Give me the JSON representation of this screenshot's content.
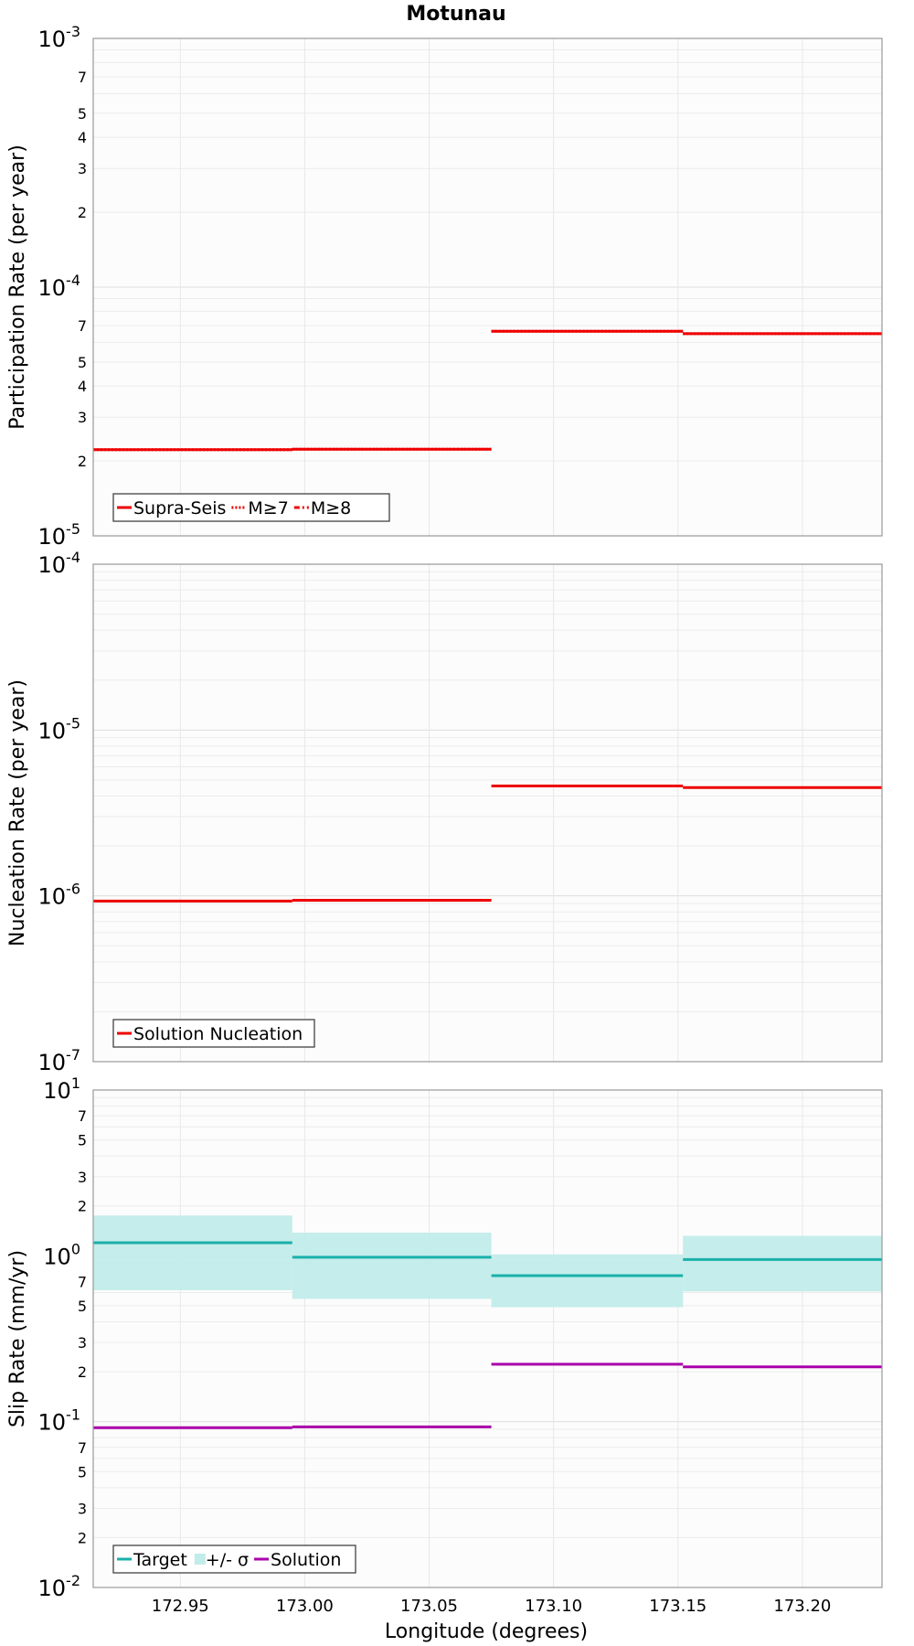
{
  "chart_data": [
    {
      "type": "line",
      "step": true,
      "title": "Motunau",
      "ylabel": "Participation Rate (per year)",
      "xlabel": "",
      "yscale": "log",
      "ylim": [
        1e-05,
        0.001
      ],
      "xlim": [
        172.915,
        173.232
      ],
      "grid": true,
      "legend_position": "bottom-left",
      "series": [
        {
          "name": "Supra-Seis",
          "color": "#ee0000",
          "dash": "solid",
          "segments": [
            {
              "x": [
                172.915,
                172.995
              ],
              "y": 2.22e-05
            },
            {
              "x": [
                172.995,
                173.075
              ],
              "y": 2.23e-05
            },
            {
              "x": [
                173.075,
                173.152
              ],
              "y": 6.65e-05
            },
            {
              "x": [
                173.152,
                173.232
              ],
              "y": 6.5e-05
            }
          ]
        },
        {
          "name": "M≥7",
          "color": "#ee0000",
          "dash": "dotted",
          "segments": [
            {
              "x": [
                172.915,
                172.995
              ],
              "y": 2.22e-05
            },
            {
              "x": [
                172.995,
                173.075
              ],
              "y": 2.23e-05
            },
            {
              "x": [
                173.075,
                173.152
              ],
              "y": 6.65e-05
            },
            {
              "x": [
                173.152,
                173.232
              ],
              "y": 6.5e-05
            }
          ]
        },
        {
          "name": "M≥8",
          "color": "#ee0000",
          "dash": "dashdot",
          "segments": []
        }
      ],
      "yticks": {
        "major": [
          {
            "value": 1e-05,
            "base": "10",
            "exp": "-5"
          },
          {
            "value": 0.0001,
            "base": "10",
            "exp": "-4"
          },
          {
            "value": 0.001,
            "base": "10",
            "exp": "-3"
          }
        ],
        "minor": [
          {
            "value": 2e-05,
            "label": "2"
          },
          {
            "value": 3e-05,
            "label": "3"
          },
          {
            "value": 4e-05,
            "label": "4"
          },
          {
            "value": 5e-05,
            "label": "5"
          },
          {
            "value": 7e-05,
            "label": "7"
          },
          {
            "value": 0.0002,
            "label": "2"
          },
          {
            "value": 0.0003,
            "label": "3"
          },
          {
            "value": 0.0004,
            "label": "4"
          },
          {
            "value": 0.0005,
            "label": "5"
          },
          {
            "value": 0.0007,
            "label": "7"
          }
        ]
      }
    },
    {
      "type": "line",
      "step": true,
      "title": "",
      "ylabel": "Nucleation Rate (per year)",
      "xlabel": "",
      "yscale": "log",
      "ylim": [
        1e-07,
        0.0001
      ],
      "xlim": [
        172.915,
        173.232
      ],
      "grid": true,
      "legend_position": "bottom-left",
      "series": [
        {
          "name": "Solution Nucleation",
          "color": "#ee0000",
          "dash": "solid",
          "segments": [
            {
              "x": [
                172.915,
                172.995
              ],
              "y": 9.3e-07
            },
            {
              "x": [
                172.995,
                173.075
              ],
              "y": 9.4e-07
            },
            {
              "x": [
                173.075,
                173.152
              ],
              "y": 4.6e-06
            },
            {
              "x": [
                173.152,
                173.232
              ],
              "y": 4.5e-06
            }
          ]
        }
      ],
      "yticks": {
        "major": [
          {
            "value": 1e-07,
            "base": "10",
            "exp": "-7"
          },
          {
            "value": 1e-06,
            "base": "10",
            "exp": "-6"
          },
          {
            "value": 1e-05,
            "base": "10",
            "exp": "-5"
          },
          {
            "value": 0.0001,
            "base": "10",
            "exp": "-4"
          }
        ],
        "minor": []
      }
    },
    {
      "type": "line",
      "step": true,
      "title": "",
      "ylabel": "Slip Rate (mm/yr)",
      "xlabel": "Longitude (degrees)",
      "yscale": "log",
      "ylim": [
        0.01,
        10
      ],
      "xlim": [
        172.915,
        173.232
      ],
      "grid": true,
      "legend_position": "bottom-left",
      "series": [
        {
          "name": "Target",
          "color": "#1ab0aa",
          "dash": "solid",
          "segments": [
            {
              "x": [
                172.915,
                172.995
              ],
              "y": 1.2
            },
            {
              "x": [
                172.995,
                173.075
              ],
              "y": 0.98
            },
            {
              "x": [
                173.075,
                173.152
              ],
              "y": 0.76
            },
            {
              "x": [
                173.152,
                173.232
              ],
              "y": 0.95
            }
          ]
        },
        {
          "name": "+/- σ",
          "color": "#c2ecea",
          "type": "band",
          "segments": [
            {
              "x": [
                172.915,
                172.995
              ],
              "low": 0.62,
              "high": 1.75
            },
            {
              "x": [
                172.995,
                173.075
              ],
              "low": 0.55,
              "high": 1.38
            },
            {
              "x": [
                173.075,
                173.152
              ],
              "low": 0.49,
              "high": 1.02
            },
            {
              "x": [
                173.152,
                173.232
              ],
              "low": 0.61,
              "high": 1.32
            }
          ]
        },
        {
          "name": "Solution",
          "color": "#aa00aa",
          "dash": "solid",
          "segments": [
            {
              "x": [
                172.915,
                172.995
              ],
              "y": 0.092
            },
            {
              "x": [
                172.995,
                173.075
              ],
              "y": 0.093
            },
            {
              "x": [
                173.075,
                173.152
              ],
              "y": 0.222
            },
            {
              "x": [
                173.152,
                173.232
              ],
              "y": 0.214
            }
          ]
        }
      ],
      "yticks": {
        "major": [
          {
            "value": 0.01,
            "base": "10",
            "exp": "-2"
          },
          {
            "value": 0.1,
            "base": "10",
            "exp": "-1"
          },
          {
            "value": 1,
            "base": "10",
            "exp": "0"
          },
          {
            "value": 10,
            "base": "10",
            "exp": "1"
          }
        ],
        "minor": [
          {
            "value": 0.02,
            "label": "2"
          },
          {
            "value": 0.03,
            "label": "3"
          },
          {
            "value": 0.05,
            "label": "5"
          },
          {
            "value": 0.07,
            "label": "7"
          },
          {
            "value": 0.2,
            "label": "2"
          },
          {
            "value": 0.3,
            "label": "3"
          },
          {
            "value": 0.5,
            "label": "5"
          },
          {
            "value": 0.7,
            "label": "7"
          },
          {
            "value": 2,
            "label": "2"
          },
          {
            "value": 3,
            "label": "3"
          },
          {
            "value": 5,
            "label": "5"
          },
          {
            "value": 7,
            "label": "7"
          }
        ]
      },
      "xticks": [
        {
          "value": 172.95,
          "label": "172.95"
        },
        {
          "value": 173.0,
          "label": "173.00"
        },
        {
          "value": 173.05,
          "label": "173.05"
        },
        {
          "value": 173.1,
          "label": "173.10"
        },
        {
          "value": 173.15,
          "label": "173.15"
        },
        {
          "value": 173.2,
          "label": "173.20"
        }
      ]
    }
  ]
}
